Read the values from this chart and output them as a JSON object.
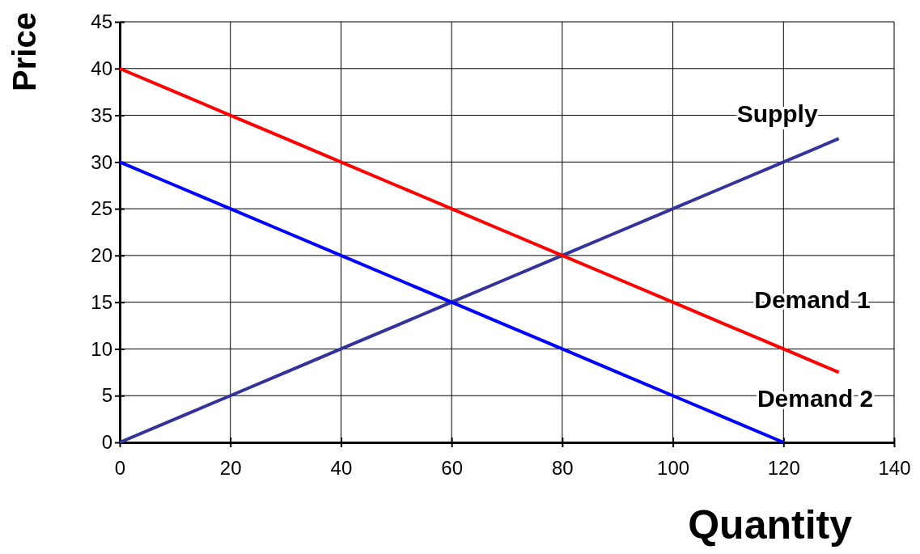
{
  "chart_data": {
    "type": "line",
    "xlabel": "Quantity",
    "ylabel": "Price",
    "xlim": [
      0,
      140
    ],
    "xticks": [
      0,
      20,
      40,
      60,
      80,
      100,
      120,
      140
    ],
    "ylim": [
      0,
      45
    ],
    "yticks": [
      0,
      5,
      10,
      15,
      20,
      25,
      30,
      35,
      40,
      45
    ],
    "grid": true,
    "legend": false,
    "marker": "none",
    "line_style": "solid",
    "series": [
      {
        "name": "Supply",
        "color": "#333399",
        "x": [
          0,
          10,
          20,
          30,
          40,
          50,
          60,
          70,
          80,
          90,
          100,
          110,
          120,
          130
        ],
        "values": [
          0,
          2.5,
          5,
          7.5,
          10,
          12.5,
          15,
          17.5,
          20,
          22.5,
          25,
          27.5,
          30,
          32.5
        ]
      },
      {
        "name": "Demand 1",
        "color": "#ff0000",
        "x": [
          0,
          10,
          20,
          30,
          40,
          50,
          60,
          70,
          80,
          90,
          100,
          110,
          120,
          130
        ],
        "values": [
          40,
          37.5,
          35,
          32.5,
          30,
          27.5,
          25,
          22.5,
          20,
          17.5,
          15,
          12.5,
          10,
          7.5
        ]
      },
      {
        "name": "Demand 2",
        "color": "#0000ff",
        "x": [
          0,
          10,
          20,
          30,
          40,
          50,
          60,
          70,
          80,
          90,
          100,
          110,
          120
        ],
        "values": [
          30,
          27.5,
          25,
          22.5,
          20,
          17.5,
          15,
          12.5,
          10,
          7.5,
          5,
          2.5,
          0
        ]
      }
    ]
  }
}
